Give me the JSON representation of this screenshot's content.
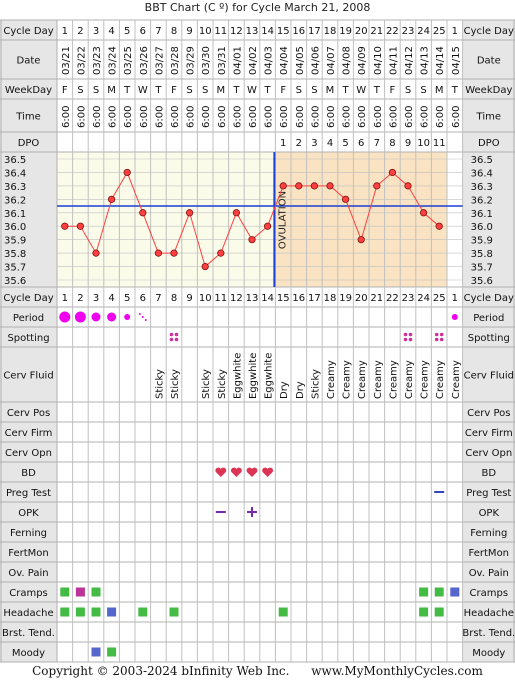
{
  "title": "BBT Chart (C º) for Cycle March 21, 2008",
  "footer": {
    "copyright": "Copyright © 2003-2024 bInfinity Web Inc.",
    "site": "www.MyMonthlyCycles.com"
  },
  "row_labels": {
    "cycle_day": "Cycle Day",
    "date": "Date",
    "weekday": "WeekDay",
    "time": "Time",
    "dpo": "DPO",
    "period": "Period",
    "spotting": "Spotting",
    "cerv_fluid": "Cerv Fluid",
    "cerv_pos": "Cerv Pos",
    "cerv_firm": "Cerv Firm",
    "cerv_opn": "Cerv Opn",
    "bd": "BD",
    "preg_test": "Preg Test",
    "opk": "OPK",
    "ferning": "Ferning",
    "fertmon": "FertMon",
    "ov_pain": "Ov. Pain",
    "cramps": "Cramps",
    "headache": "Headache",
    "brst_tend": "Brst. Tend.",
    "moody": "Moody"
  },
  "ovulation_label": "OVULATION",
  "colors": {
    "grid": "#c0c0c0",
    "label_bg": "#e6e6e6",
    "follicular_bg": "#fbfbea",
    "luteal_bg": "#f9e3c2",
    "temp_line": "#ff4040",
    "coverline": "#1a3fd6",
    "period": "#ee00ee",
    "spotting": "#cc3399",
    "heart": "#dd3355",
    "opk": "#7a2aa8",
    "preg_test": "#3344bb",
    "sym_green": "#44bb44",
    "sym_magenta": "#bb3399",
    "sym_blue": "#5566cc"
  },
  "chart_data": {
    "type": "line",
    "cycle_days": [
      "1",
      "2",
      "3",
      "4",
      "5",
      "6",
      "7",
      "8",
      "9",
      "10",
      "11",
      "12",
      "13",
      "14",
      "15",
      "16",
      "17",
      "18",
      "19",
      "20",
      "21",
      "22",
      "23",
      "24",
      "25",
      "1"
    ],
    "dates": [
      "03/21",
      "03/22",
      "03/23",
      "03/24",
      "03/25",
      "03/26",
      "03/27",
      "03/28",
      "03/29",
      "03/30",
      "03/31",
      "04/01",
      "04/02",
      "04/03",
      "04/04",
      "04/05",
      "04/06",
      "04/07",
      "04/08",
      "04/09",
      "04/10",
      "04/11",
      "04/12",
      "04/13",
      "04/14",
      "04/15"
    ],
    "weekdays": [
      "F",
      "S",
      "S",
      "M",
      "T",
      "W",
      "T",
      "F",
      "S",
      "S",
      "M",
      "T",
      "W",
      "T",
      "F",
      "S",
      "S",
      "M",
      "T",
      "W",
      "T",
      "F",
      "S",
      "S",
      "M",
      "T"
    ],
    "times": [
      "6:00",
      "6:00",
      "6:00",
      "6:00",
      "6:00",
      "6:00",
      "6:00",
      "6:00",
      "6:00",
      "6:00",
      "6:00",
      "6:00",
      "6:00",
      "6:00",
      "6:00",
      "6:00",
      "6:00",
      "6:00",
      "6:00",
      "6:00",
      "6:00",
      "6:00",
      "6:00",
      "6:00",
      "6:00",
      "6:00"
    ],
    "dpo": [
      "",
      "",
      "",
      "",
      "",
      "",
      "",
      "",
      "",
      "",
      "",
      "",
      "",
      "",
      "1",
      "2",
      "3",
      "4",
      "5",
      "6",
      "7",
      "8",
      "9",
      "10",
      "11",
      ""
    ],
    "temperatures": [
      36.0,
      36.0,
      35.8,
      36.2,
      36.4,
      36.1,
      35.8,
      35.8,
      36.1,
      35.7,
      35.8,
      36.1,
      35.9,
      36.0,
      36.3,
      36.3,
      36.3,
      36.3,
      36.2,
      35.9,
      36.3,
      36.4,
      36.3,
      36.1,
      36.0,
      null
    ],
    "y_ticks": [
      "36.5",
      "36.4",
      "36.3",
      "36.2",
      "36.1",
      "36.0",
      "35.9",
      "35.8",
      "35.7",
      "35.6"
    ],
    "ylim": [
      35.6,
      36.5
    ],
    "coverline": 36.15,
    "ovulation_after_day_index": 13,
    "period": [
      "large",
      "large",
      "medium",
      "medium",
      "small",
      "tiny",
      "",
      "",
      "",
      "",
      "",
      "",
      "",
      "",
      "",
      "",
      "",
      "",
      "",
      "",
      "",
      "",
      "",
      "",
      "",
      "small"
    ],
    "spotting": [
      false,
      false,
      false,
      false,
      false,
      false,
      false,
      true,
      false,
      false,
      false,
      false,
      false,
      false,
      false,
      false,
      false,
      false,
      false,
      false,
      false,
      false,
      true,
      false,
      true,
      false
    ],
    "cerv_fluid": [
      "",
      "",
      "",
      "",
      "",
      "",
      "Sticky",
      "Sticky",
      "",
      "Sticky",
      "Sticky",
      "Eggwhite",
      "Eggwhite",
      "Eggwhite",
      "Dry",
      "Dry",
      "Sticky",
      "Creamy",
      "Creamy",
      "Creamy",
      "Creamy",
      "Creamy",
      "Creamy",
      "Creamy",
      "Creamy",
      "Creamy"
    ],
    "bd": [
      false,
      false,
      false,
      false,
      false,
      false,
      false,
      false,
      false,
      false,
      true,
      true,
      true,
      true,
      false,
      false,
      false,
      false,
      false,
      false,
      false,
      false,
      false,
      false,
      false,
      false
    ],
    "preg_test": [
      "",
      "",
      "",
      "",
      "",
      "",
      "",
      "",
      "",
      "",
      "",
      "",
      "",
      "",
      "",
      "",
      "",
      "",
      "",
      "",
      "",
      "",
      "",
      "",
      "negative",
      ""
    ],
    "opk": [
      "",
      "",
      "",
      "",
      "",
      "",
      "",
      "",
      "",
      "",
      "negative",
      "",
      "positive",
      "",
      "",
      "",
      "",
      "",
      "",
      "",
      "",
      "",
      "",
      "",
      "",
      ""
    ],
    "cramps": [
      "green",
      "magenta",
      "green",
      "",
      "",
      "",
      "",
      "",
      "",
      "",
      "",
      "",
      "",
      "",
      "",
      "",
      "",
      "",
      "",
      "",
      "",
      "",
      "",
      "green",
      "green",
      "blue"
    ],
    "headache": [
      "green",
      "green",
      "green",
      "blue",
      "",
      "green",
      "",
      "green",
      "",
      "",
      "",
      "",
      "",
      "",
      "green",
      "",
      "",
      "",
      "",
      "",
      "",
      "",
      "",
      "green",
      "green",
      ""
    ],
    "moody": [
      "",
      "",
      "blue",
      "green",
      "",
      "",
      "",
      "",
      "",
      "",
      "",
      "",
      "",
      "",
      "",
      "",
      "",
      "",
      "",
      "",
      "",
      "",
      "",
      "",
      "",
      ""
    ]
  }
}
